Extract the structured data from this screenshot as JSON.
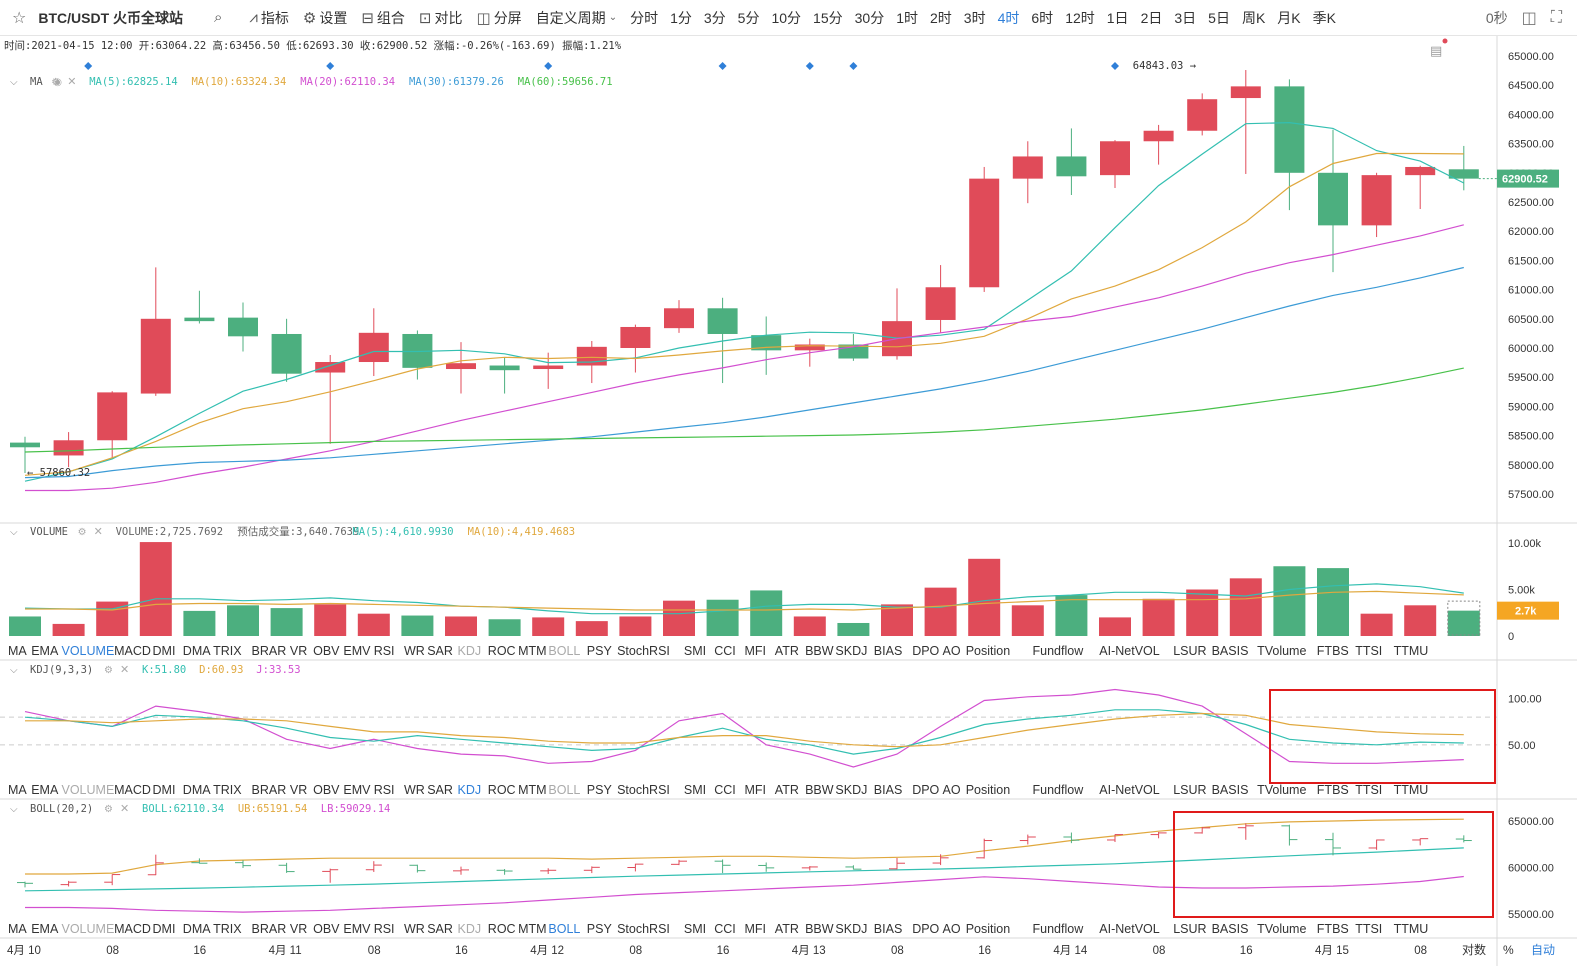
{
  "toolbar": {
    "symbol": "BTC/USDT 火币全球站",
    "tools": [
      {
        "icon": "search-icon",
        "label": ""
      },
      {
        "icon": "indicator-icon",
        "label": "指标"
      },
      {
        "icon": "gear-icon",
        "label": "设置"
      },
      {
        "icon": "combine-icon",
        "label": "组合"
      },
      {
        "icon": "compare-icon",
        "label": "对比"
      },
      {
        "icon": "split-screen-icon",
        "label": "分屏"
      }
    ],
    "custom_period": "自定义周期",
    "periods": [
      "分时",
      "1分",
      "3分",
      "5分",
      "10分",
      "15分",
      "30分",
      "1时",
      "2时",
      "3时",
      "4时",
      "6时",
      "12时",
      "1日",
      "2日",
      "3日",
      "5日",
      "周K",
      "月K",
      "季K"
    ],
    "active_period": "4时",
    "seconds": "0秒"
  },
  "info_line": "时间:2021-04-15 12:00  开:63064.22  高:63456.50  低:62693.30  收:62900.52  涨幅:-0.26%(-163.69)  振幅:1.21%",
  "ma_legend": {
    "name": "MA",
    "items": [
      {
        "text": "MA(5):62825.14",
        "color": "#33bfb1"
      },
      {
        "text": "MA(10):63324.34",
        "color": "#e0a83e"
      },
      {
        "text": "MA(20):62110.34",
        "color": "#d24fd0"
      },
      {
        "text": "MA(30):61379.26",
        "color": "#3c9bd6"
      },
      {
        "text": "MA(60):59656.71",
        "color": "#48c14a"
      }
    ]
  },
  "volume_legend": {
    "name": "VOLUME",
    "items": [
      {
        "text": "VOLUME:2,725.7692",
        "color": "#666666"
      },
      {
        "text": "预估成交量:3,640.7639",
        "color": "#666666"
      },
      {
        "text": "MA(5):4,610.9930",
        "color": "#33bfb1"
      },
      {
        "text": "MA(10):4,419.4683",
        "color": "#e0a83e"
      }
    ]
  },
  "kdj_legend": {
    "name": "KDJ(9,3,3)",
    "items": [
      {
        "text": "K:51.80",
        "color": "#33bfb1"
      },
      {
        "text": "D:60.93",
        "color": "#e0a83e"
      },
      {
        "text": "J:33.53",
        "color": "#d24fd0"
      }
    ]
  },
  "boll_legend": {
    "name": "BOLL(20,2)",
    "items": [
      {
        "text": "BOLL:62110.34",
        "color": "#33bfb1"
      },
      {
        "text": "UB:65191.54",
        "color": "#e0a83e"
      },
      {
        "text": "LB:59029.14",
        "color": "#d24fd0"
      }
    ]
  },
  "indicator_tabs": [
    "MA",
    "EMA",
    "VOLUME",
    "MACD",
    "DMI",
    "DMA",
    "TRIX",
    "BRAR",
    "VR",
    "OBV",
    "EMV",
    "RSI",
    "WR",
    "SAR",
    "KDJ",
    "ROC",
    "MTM",
    "BOLL",
    "PSY",
    "StochRSI",
    "SMI",
    "CCI",
    "MFI",
    "ATR",
    "BBW",
    "SKDJ",
    "BIAS",
    "DPO",
    "AO",
    "Position",
    "Fundflow",
    "AI-NetVOL",
    "LSUR",
    "BASIS",
    "TVolume",
    "FTBS",
    "TTSI",
    "TTMU"
  ],
  "tab_states": {
    "row1": {
      "highlight": [
        "VOLUME"
      ],
      "dim": [
        "KDJ",
        "BOLL"
      ]
    },
    "row2": {
      "highlight": [
        "KDJ"
      ],
      "dim": [
        "VOLUME",
        "BOLL"
      ]
    },
    "row3": {
      "highlight": [
        "BOLL"
      ],
      "dim": [
        "VOLUME",
        "KDJ"
      ]
    }
  },
  "time_axis": {
    "labels": [
      {
        "i": 0,
        "text": "4月 10"
      },
      {
        "i": 2,
        "text": "08"
      },
      {
        "i": 4,
        "text": "16"
      },
      {
        "i": 6,
        "text": "4月 11"
      },
      {
        "i": 8,
        "text": "08"
      },
      {
        "i": 10,
        "text": "16"
      },
      {
        "i": 12,
        "text": "4月 12"
      },
      {
        "i": 14,
        "text": "08"
      },
      {
        "i": 16,
        "text": "16"
      },
      {
        "i": 18,
        "text": "4月 13"
      },
      {
        "i": 20,
        "text": "08"
      },
      {
        "i": 22,
        "text": "16"
      },
      {
        "i": 24,
        "text": "4月 14"
      },
      {
        "i": 26,
        "text": "08"
      },
      {
        "i": 28,
        "text": "16"
      },
      {
        "i": 30,
        "text": "4月 15"
      },
      {
        "i": 32,
        "text": "08"
      }
    ],
    "right_buttons": [
      "对数",
      "%",
      "自动"
    ]
  },
  "chart_data": {
    "type": "candlestick",
    "price_axis": {
      "ylim": [
        57000,
        65200
      ],
      "ticks": [
        65000,
        64500,
        64000,
        63500,
        63000,
        62500,
        62000,
        61500,
        61000,
        60500,
        60000,
        59500,
        59000,
        58500,
        58000,
        57500
      ]
    },
    "last_price": "62900.52",
    "high_label": "64843.03 →",
    "low_label": "← 57860.32",
    "candles": [
      [
        58380,
        58480,
        57860,
        58300
      ],
      [
        58160,
        58560,
        57960,
        58420
      ],
      [
        58420,
        59260,
        58100,
        59240
      ],
      [
        59220,
        61380,
        59180,
        60500
      ],
      [
        60520,
        60980,
        60420,
        60460
      ],
      [
        60520,
        60780,
        59940,
        60200
      ],
      [
        60240,
        60500,
        59420,
        59560
      ],
      [
        59580,
        59880,
        58360,
        59760
      ],
      [
        59760,
        60680,
        59520,
        60260
      ],
      [
        60240,
        60300,
        59460,
        59660
      ],
      [
        59640,
        60100,
        59220,
        59740
      ],
      [
        59700,
        59840,
        59220,
        59620
      ],
      [
        59640,
        59920,
        59300,
        59700
      ],
      [
        59700,
        60120,
        59400,
        60020
      ],
      [
        60000,
        60400,
        59580,
        60360
      ],
      [
        60340,
        60820,
        60260,
        60680
      ],
      [
        60680,
        60860,
        59400,
        60240
      ],
      [
        60220,
        60540,
        59540,
        59960
      ],
      [
        59960,
        60160,
        59680,
        60060
      ],
      [
        60060,
        60240,
        59780,
        59820
      ],
      [
        59860,
        61020,
        59800,
        60460
      ],
      [
        60480,
        61420,
        60260,
        61040
      ],
      [
        61040,
        63100,
        60960,
        62900
      ],
      [
        62900,
        63540,
        62480,
        63280
      ],
      [
        63280,
        63760,
        62620,
        62940
      ],
      [
        62960,
        63560,
        62740,
        63540
      ],
      [
        63540,
        63820,
        63140,
        63720
      ],
      [
        63720,
        64360,
        63640,
        64260
      ],
      [
        64280,
        64760,
        62980,
        64480
      ],
      [
        64480,
        64600,
        62360,
        63000
      ],
      [
        63000,
        63740,
        61300,
        62100
      ],
      [
        62100,
        63000,
        61900,
        62960
      ],
      [
        62960,
        63120,
        62380,
        63100
      ],
      [
        63060,
        63460,
        62700,
        62900
      ]
    ],
    "ma": {
      "MA5": [
        57720,
        57880,
        58100,
        58480,
        58880,
        59260,
        59460,
        59700,
        59940,
        59940,
        59960,
        59900,
        59750,
        59760,
        59830,
        60000,
        60120,
        60220,
        60270,
        60260,
        60170,
        60220,
        60320,
        60820,
        61320,
        62060,
        62780,
        63320,
        63840,
        63860,
        63760,
        63380,
        63200,
        62825
      ],
      "MA10": [
        57820,
        57880,
        58120,
        58400,
        58720,
        58960,
        59080,
        59250,
        59440,
        59640,
        59780,
        59840,
        59820,
        59840,
        59820,
        59880,
        59950,
        60010,
        60040,
        60030,
        60020,
        60080,
        60200,
        60500,
        60840,
        61060,
        61340,
        61720,
        62160,
        62760,
        63160,
        63330,
        63330,
        63324
      ],
      "MA20": [
        57560,
        57560,
        57600,
        57700,
        57840,
        57960,
        58100,
        58240,
        58400,
        58580,
        58760,
        58920,
        59080,
        59240,
        59400,
        59540,
        59660,
        59800,
        59920,
        60020,
        60160,
        60260,
        60360,
        60460,
        60540,
        60700,
        60860,
        61060,
        61280,
        61460,
        61600,
        61760,
        61920,
        62110
      ],
      "MA30": [
        57780,
        57800,
        57900,
        57980,
        58040,
        58060,
        58080,
        58120,
        58180,
        58240,
        58300,
        58360,
        58420,
        58480,
        58560,
        58640,
        58720,
        58820,
        58940,
        59060,
        59180,
        59300,
        59440,
        59600,
        59780,
        59960,
        60140,
        60320,
        60520,
        60720,
        60900,
        61040,
        61200,
        61379
      ],
      "MA60": [
        58220,
        58240,
        58270,
        58300,
        58320,
        58340,
        58360,
        58380,
        58400,
        58410,
        58420,
        58430,
        58440,
        58450,
        58460,
        58470,
        58480,
        58490,
        58500,
        58510,
        58530,
        58560,
        58600,
        58660,
        58720,
        58780,
        58860,
        58940,
        59040,
        59140,
        59240,
        59360,
        59500,
        59656
      ]
    },
    "volume": {
      "ylim": [
        0,
        10500
      ],
      "ticks": [
        "10.00k",
        "5.00k",
        "0"
      ],
      "last_label": "2.7k",
      "values": [
        2100,
        1300,
        3700,
        10600,
        2700,
        3300,
        3000,
        3400,
        2400,
        2200,
        2100,
        1800,
        2000,
        1600,
        2100,
        3800,
        3900,
        4900,
        2100,
        1400,
        3400,
        5200,
        8300,
        3300,
        4400,
        2000,
        4000,
        5000,
        6200,
        7500,
        7300,
        2400,
        3300,
        2726
      ],
      "ma5": [
        3000,
        2900,
        2900,
        4000,
        4000,
        3800,
        3900,
        4100,
        3800,
        3600,
        3200,
        3100,
        2700,
        2400,
        2400,
        2400,
        2700,
        3200,
        3400,
        3400,
        3100,
        3100,
        3800,
        4200,
        4400,
        4700,
        4700,
        4500,
        4300,
        5000,
        5400,
        5600,
        5300,
        4611
      ],
      "ma10": [
        2900,
        2900,
        2800,
        3400,
        3500,
        3500,
        3400,
        3500,
        3400,
        3300,
        3200,
        3100,
        3000,
        2900,
        2800,
        2800,
        2800,
        2800,
        2900,
        2800,
        3000,
        3200,
        3500,
        3700,
        3900,
        3900,
        3900,
        3900,
        4000,
        4400,
        4700,
        4800,
        4600,
        4419
      ]
    },
    "kdj": {
      "ylim": [
        18,
        118
      ],
      "ticks": [
        100.0,
        50.0
      ],
      "K": [
        80,
        76,
        70,
        82,
        80,
        76,
        68,
        58,
        54,
        60,
        56,
        52,
        48,
        44,
        46,
        58,
        68,
        56,
        50,
        40,
        46,
        58,
        72,
        78,
        82,
        88,
        88,
        84,
        72,
        56,
        52,
        50,
        53,
        52
      ],
      "D": [
        76,
        76,
        74,
        76,
        78,
        78,
        76,
        70,
        64,
        64,
        60,
        58,
        54,
        52,
        52,
        58,
        60,
        60,
        54,
        50,
        48,
        50,
        58,
        66,
        72,
        78,
        82,
        84,
        82,
        72,
        68,
        64,
        62,
        61
      ],
      "J": [
        86,
        76,
        70,
        92,
        86,
        78,
        56,
        46,
        56,
        46,
        40,
        38,
        30,
        32,
        44,
        76,
        84,
        50,
        40,
        26,
        40,
        70,
        98,
        102,
        104,
        110,
        104,
        92,
        62,
        32,
        30,
        30,
        32,
        34
      ]
    },
    "boll": {
      "ylim": [
        55000,
        66000
      ],
      "ticks": [
        65000,
        60000,
        55000
      ],
      "UB": [
        59300,
        59300,
        59400,
        60300,
        60700,
        60800,
        60900,
        61000,
        61000,
        61000,
        61000,
        61000,
        61000,
        60900,
        61000,
        61100,
        61200,
        61200,
        61100,
        61000,
        61100,
        61200,
        61800,
        62300,
        62900,
        63400,
        63900,
        64300,
        64700,
        64900,
        65000,
        65100,
        65150,
        65191
      ],
      "MID": [
        57500,
        57560,
        57620,
        57700,
        57780,
        57880,
        58000,
        58100,
        58220,
        58360,
        58500,
        58640,
        58780,
        58920,
        59060,
        59180,
        59300,
        59420,
        59540,
        59640,
        59740,
        59840,
        59960,
        60120,
        60260,
        60400,
        60600,
        60820,
        61040,
        61260,
        61460,
        61660,
        61880,
        62110
      ],
      "LB": [
        55700,
        55700,
        55600,
        55400,
        55300,
        55200,
        55300,
        55400,
        55600,
        55800,
        56000,
        56200,
        56500,
        56800,
        57100,
        57300,
        57500,
        57700,
        57900,
        58100,
        58400,
        58700,
        59000,
        58800,
        58500,
        58200,
        57900,
        57800,
        57800,
        57900,
        58000,
        58200,
        58500,
        59029
      ]
    }
  }
}
